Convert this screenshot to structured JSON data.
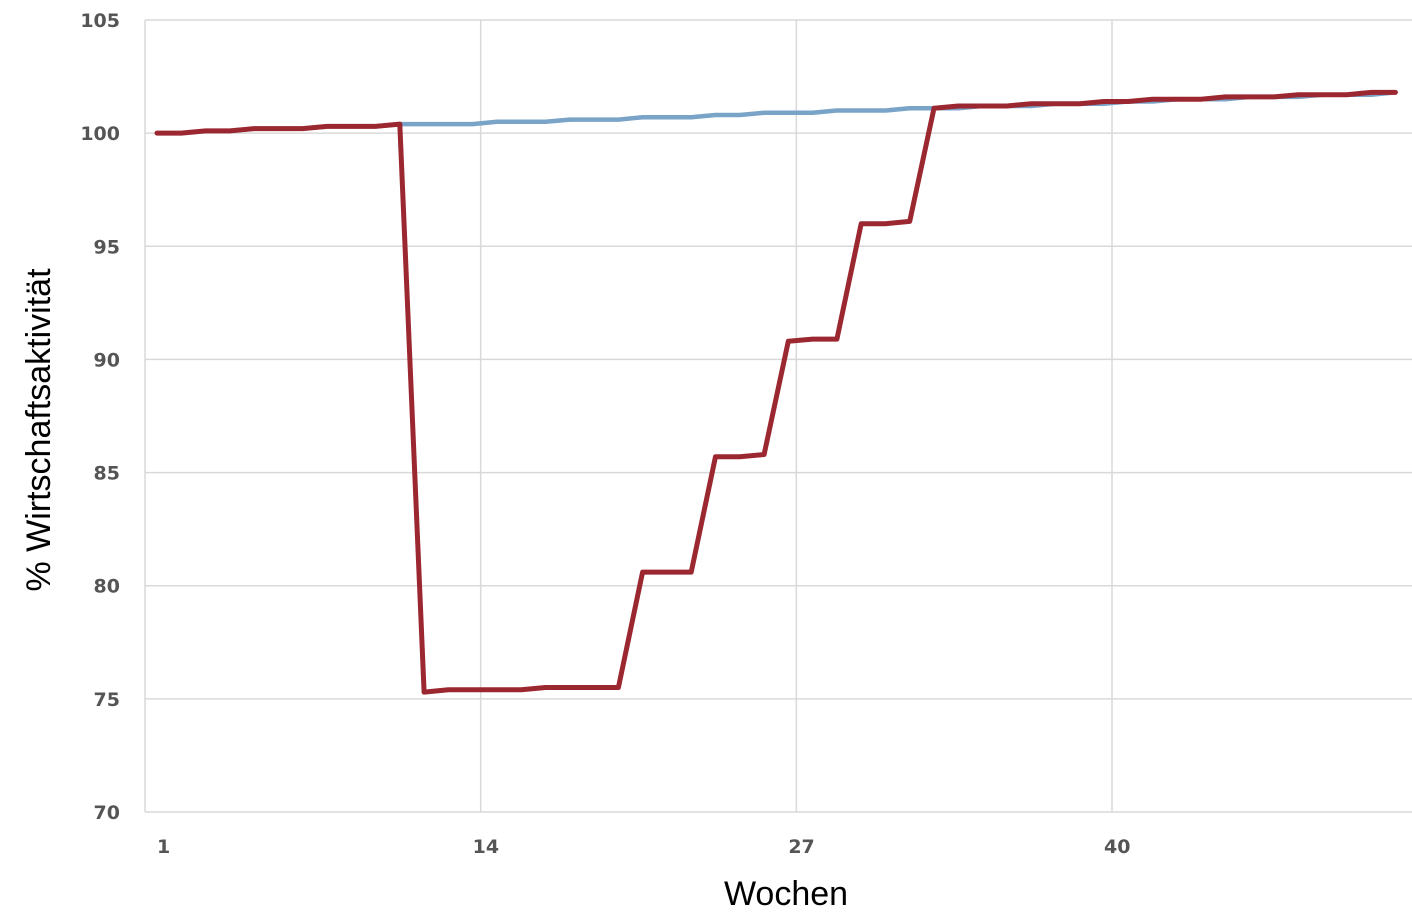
{
  "chart_data": {
    "type": "line",
    "xlabel": "Wochen",
    "ylabel": "% Wirtschaftsaktivität",
    "xlim": [
      1,
      52
    ],
    "ylim": [
      70,
      105
    ],
    "xticks": [
      1,
      14,
      27,
      40
    ],
    "yticks": [
      70,
      75,
      80,
      85,
      90,
      95,
      100,
      105
    ],
    "grid": true,
    "x": [
      1,
      2,
      3,
      4,
      5,
      6,
      7,
      8,
      9,
      10,
      11,
      12,
      13,
      14,
      15,
      16,
      17,
      18,
      19,
      20,
      21,
      22,
      23,
      24,
      25,
      26,
      27,
      28,
      29,
      30,
      31,
      32,
      33,
      34,
      35,
      36,
      37,
      38,
      39,
      40,
      41,
      42,
      43,
      44,
      45,
      46,
      47,
      48,
      49,
      50,
      51,
      52
    ],
    "series": [
      {
        "color": "#7aa3c8",
        "values": [
          100.0,
          100.0,
          100.1,
          100.1,
          100.2,
          100.2,
          100.2,
          100.3,
          100.3,
          100.3,
          100.4,
          100.4,
          100.4,
          100.4,
          100.5,
          100.5,
          100.5,
          100.6,
          100.6,
          100.6,
          100.7,
          100.7,
          100.7,
          100.8,
          100.8,
          100.9,
          100.9,
          100.9,
          101.0,
          101.0,
          101.0,
          101.1,
          101.1,
          101.1,
          101.2,
          101.2,
          101.2,
          101.3,
          101.3,
          101.3,
          101.4,
          101.4,
          101.5,
          101.5,
          101.5,
          101.6,
          101.6,
          101.6,
          101.7,
          101.7,
          101.7,
          101.8
        ]
      },
      {
        "color": "#9b2830",
        "values": [
          100.0,
          100.0,
          100.1,
          100.1,
          100.2,
          100.2,
          100.2,
          100.3,
          100.3,
          100.3,
          100.4,
          75.3,
          75.4,
          75.4,
          75.4,
          75.4,
          75.5,
          75.5,
          75.5,
          75.5,
          80.6,
          80.6,
          80.6,
          85.7,
          85.7,
          85.8,
          90.8,
          90.9,
          90.9,
          96.0,
          96.0,
          96.1,
          101.1,
          101.2,
          101.2,
          101.2,
          101.3,
          101.3,
          101.3,
          101.4,
          101.4,
          101.5,
          101.5,
          101.5,
          101.6,
          101.6,
          101.6,
          101.7,
          101.7,
          101.7,
          101.8,
          101.8
        ]
      }
    ]
  }
}
